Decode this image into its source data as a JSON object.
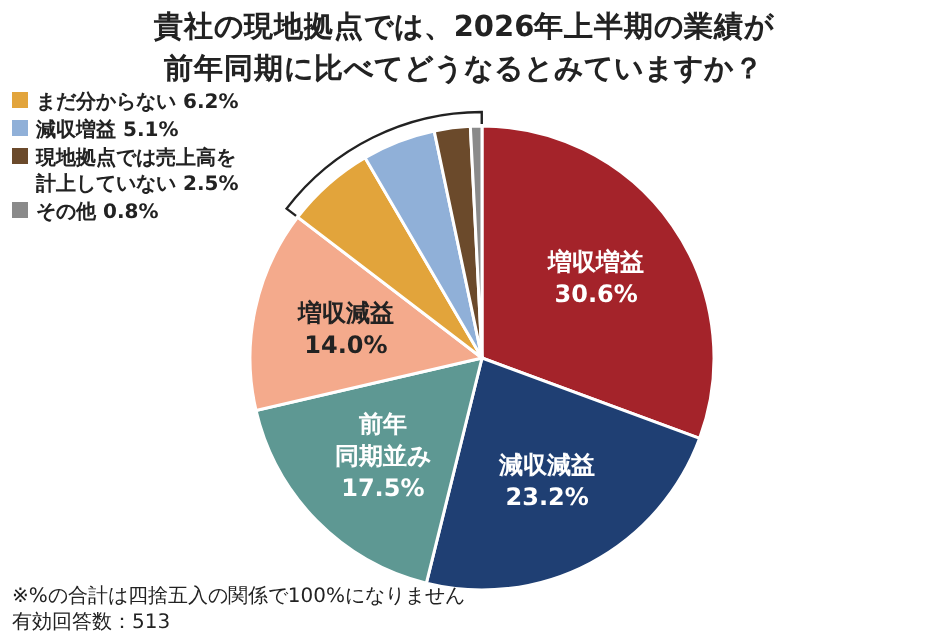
{
  "chart_data": {
    "type": "pie",
    "title": "貴社の現地拠点では、2026年上半期の業績が前年同期に比べてどうなるとみていますか？",
    "categories": [
      "増収増益",
      "減収減益",
      "前年同期並み",
      "増収減益",
      "まだ分からない",
      "減収増益",
      "現地拠点では売上高を計上していない",
      "その他"
    ],
    "values": [
      30.6,
      23.2,
      17.5,
      14.0,
      6.2,
      5.1,
      2.5,
      0.8
    ],
    "value_labels": [
      "30.6%",
      "23.2%",
      "17.5%",
      "14.0%",
      "6.2%",
      "5.1%",
      "2.5%",
      "0.8%"
    ],
    "colors": [
      "#a4232a",
      "#1f3f73",
      "#5e9893",
      "#f4aa8c",
      "#e2a43b",
      "#90b0d8",
      "#6b4a2b",
      "#8a8a8a"
    ],
    "legend": "top left",
    "annotations": [
      "※%の合計は四捨五入の関係で100%になりません",
      "有効回答数：513"
    ]
  }
}
